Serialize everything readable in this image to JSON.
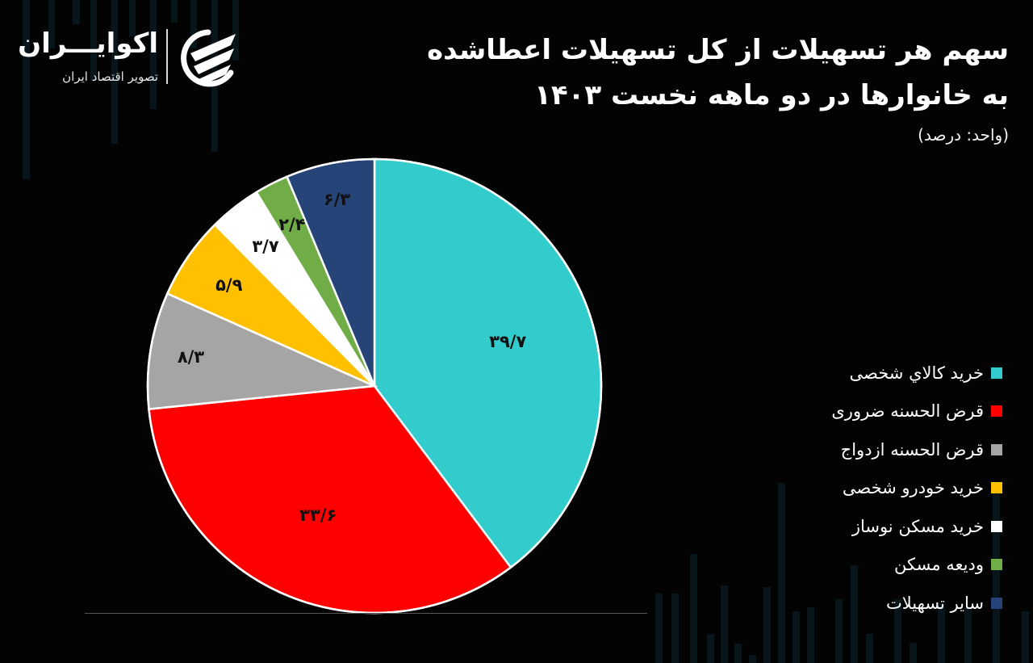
{
  "header": {
    "title_line1": "سهم هر تسهیلات از کل تسهیلات اعطاشده",
    "title_line2": "به خانوارها در دو ماهه نخست ۱۴۰۳",
    "unit": "(واحد: درصد)"
  },
  "logo": {
    "name": "اکوایـــران",
    "subtitle": "تصویر اقتصاد ایران"
  },
  "chart_data": {
    "type": "pie",
    "title": "سهم هر تسهیلات از کل تسهیلات اعطاشده به خانوارها در دو ماهه نخست ۱۴۰۳",
    "subtitle": "(واحد: درصد)",
    "unit": "percent",
    "start_angle": "12 o'clock, clockwise",
    "legend_position": "right",
    "categories": [
      "خرید کالاي شخصی",
      "قرض الحسنه ضروری",
      "قرض الحسنه ازدواج",
      "خرید خودرو شخصی",
      "خرید مسکن نوساز",
      "ودیعه مسکن",
      "سایر تسهیلات"
    ],
    "values": [
      39.7,
      33.6,
      8.3,
      5.9,
      3.7,
      2.4,
      6.3
    ],
    "data_labels": [
      "۳۹/۷",
      "۳۳/۶",
      "۸/۳",
      "۵/۹",
      "۳/۷",
      "۲/۴",
      "۶/۳"
    ],
    "colors": [
      "#33cccc",
      "#ff0000",
      "#a5a5a5",
      "#ffc000",
      "#ffffff",
      "#70ad47",
      "#264478"
    ]
  },
  "legend": {
    "items": [
      {
        "label": "خرید کالاي شخصی",
        "color": "#33cccc"
      },
      {
        "label": "قرض الحسنه ضروری",
        "color": "#ff0000"
      },
      {
        "label": "قرض الحسنه ازدواج",
        "color": "#a5a5a5"
      },
      {
        "label": "خرید خودرو شخصی",
        "color": "#ffc000"
      },
      {
        "label": "خرید مسکن نوساز",
        "color": "#ffffff"
      },
      {
        "label": "ودیعه مسکن",
        "color": "#70ad47"
      },
      {
        "label": "سایر تسهیلات",
        "color": "#264478"
      }
    ]
  }
}
